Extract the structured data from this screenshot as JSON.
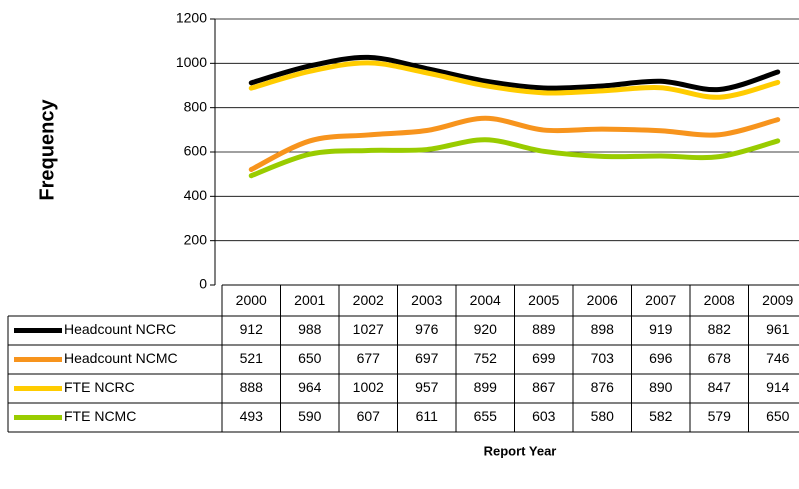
{
  "chart_data": {
    "type": "line",
    "y_label": "Frequency",
    "x_label": "Report Year",
    "categories": [
      "2000",
      "2001",
      "2002",
      "2003",
      "2004",
      "2005",
      "2006",
      "2007",
      "2008",
      "2009"
    ],
    "series": [
      {
        "name": "Headcount NCRC",
        "color": "#000000",
        "values": [
          912,
          988,
          1027,
          976,
          920,
          889,
          898,
          919,
          882,
          961
        ]
      },
      {
        "name": "Headcount NCMC",
        "color": "#f7941d",
        "values": [
          521,
          650,
          677,
          697,
          752,
          699,
          703,
          696,
          678,
          746
        ]
      },
      {
        "name": "FTE NCRC",
        "color": "#ffcc00",
        "values": [
          888,
          964,
          1002,
          957,
          899,
          867,
          876,
          890,
          847,
          914
        ]
      },
      {
        "name": "FTE NCMC",
        "color": "#99cc00",
        "values": [
          493,
          590,
          607,
          611,
          655,
          603,
          580,
          582,
          579,
          650
        ]
      }
    ],
    "ylim": [
      0,
      1200
    ],
    "yticks": [
      0,
      200,
      400,
      600,
      800,
      1000,
      1200
    ],
    "grid": true
  }
}
